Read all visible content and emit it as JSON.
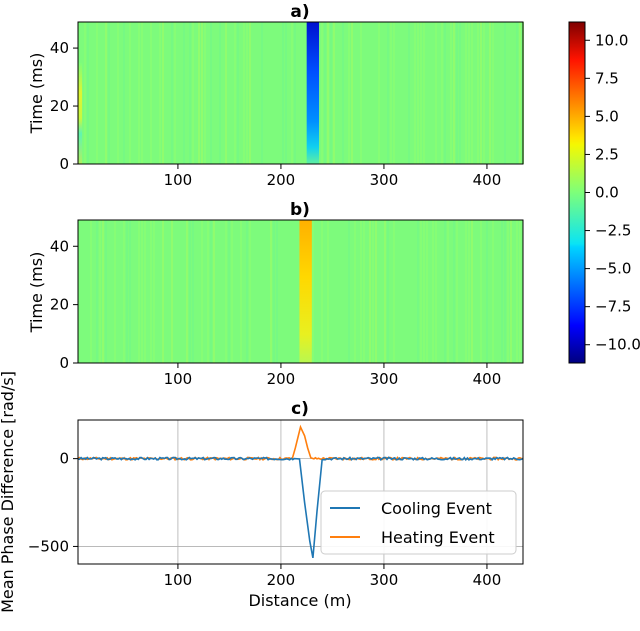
{
  "chart_data": [
    {
      "type": "heatmap",
      "title": "a)",
      "xlabel": "",
      "ylabel": "Time (ms)",
      "xlim": [
        3,
        435
      ],
      "ylim": [
        0,
        49
      ],
      "xticks": [
        "100",
        "200",
        "300",
        "400"
      ],
      "yticks": [
        "0",
        "20",
        "40"
      ],
      "features": [
        {
          "kind": "cooling band",
          "x_range": [
            225,
            237
          ],
          "value_min": -11,
          "time_end_ms": 49
        },
        {
          "kind": "warm trace",
          "x_range": [
            3,
            7
          ],
          "value": 2.5,
          "time_range_ms": [
            0,
            35
          ]
        }
      ]
    },
    {
      "type": "heatmap",
      "title": "b)",
      "xlabel": "",
      "ylabel": "Time (ms)",
      "xlim": [
        3,
        435
      ],
      "ylim": [
        0,
        49
      ],
      "xticks": [
        "100",
        "200",
        "300",
        "400"
      ],
      "yticks": [
        "0",
        "20",
        "40"
      ],
      "features": [
        {
          "kind": "heating band",
          "x_range": [
            218,
            230
          ],
          "value_max": 5.5,
          "time_end_ms": 49
        }
      ]
    },
    {
      "type": "line",
      "title": "c)",
      "xlabel": "Distance (m)",
      "ylabel": "Mean Phase Difference [rad/s]",
      "xlim": [
        3,
        435
      ],
      "ylim": [
        -600,
        220
      ],
      "xticks": [
        "100",
        "200",
        "300",
        "400"
      ],
      "yticks": [
        "-500",
        "0"
      ],
      "grid": true,
      "legend_position": "lower-right",
      "series": [
        {
          "name": "Cooling Event",
          "color": "#1f77b4",
          "x": [
            3,
            213,
            218,
            223,
            228,
            231,
            235,
            240,
            435
          ],
          "y": [
            0,
            0,
            -2,
            -250,
            -470,
            -565,
            -300,
            0,
            0
          ]
        },
        {
          "name": "Heating Event",
          "color": "#ff7f0e",
          "x": [
            3,
            211,
            214,
            219,
            223,
            226,
            229,
            232,
            435
          ],
          "y": [
            0,
            0,
            60,
            180,
            130,
            60,
            5,
            0,
            0
          ]
        }
      ]
    }
  ],
  "colorbar": {
    "min": -11.2,
    "max": 11.2,
    "colormap": "jet",
    "ticks": [
      "10.0",
      "7.5",
      "5.0",
      "2.5",
      "0.0",
      "−2.5",
      "−5.0",
      "−7.5",
      "−10.0"
    ]
  },
  "labels": {
    "a_title": "a)",
    "b_title": "b)",
    "c_title": "c)",
    "a_ylabel": "Time (ms)",
    "b_ylabel": "Time (ms)",
    "c_ylabel": "Mean Phase Difference [rad/s]",
    "c_xlabel": "Distance (m)",
    "legend_cooling": "Cooling Event",
    "legend_heating": "Heating Event"
  },
  "ticks": {
    "x": [
      "100",
      "200",
      "300",
      "400"
    ],
    "heat_y": [
      "0",
      "20",
      "40"
    ],
    "c_y": [
      "0",
      "−500"
    ]
  }
}
